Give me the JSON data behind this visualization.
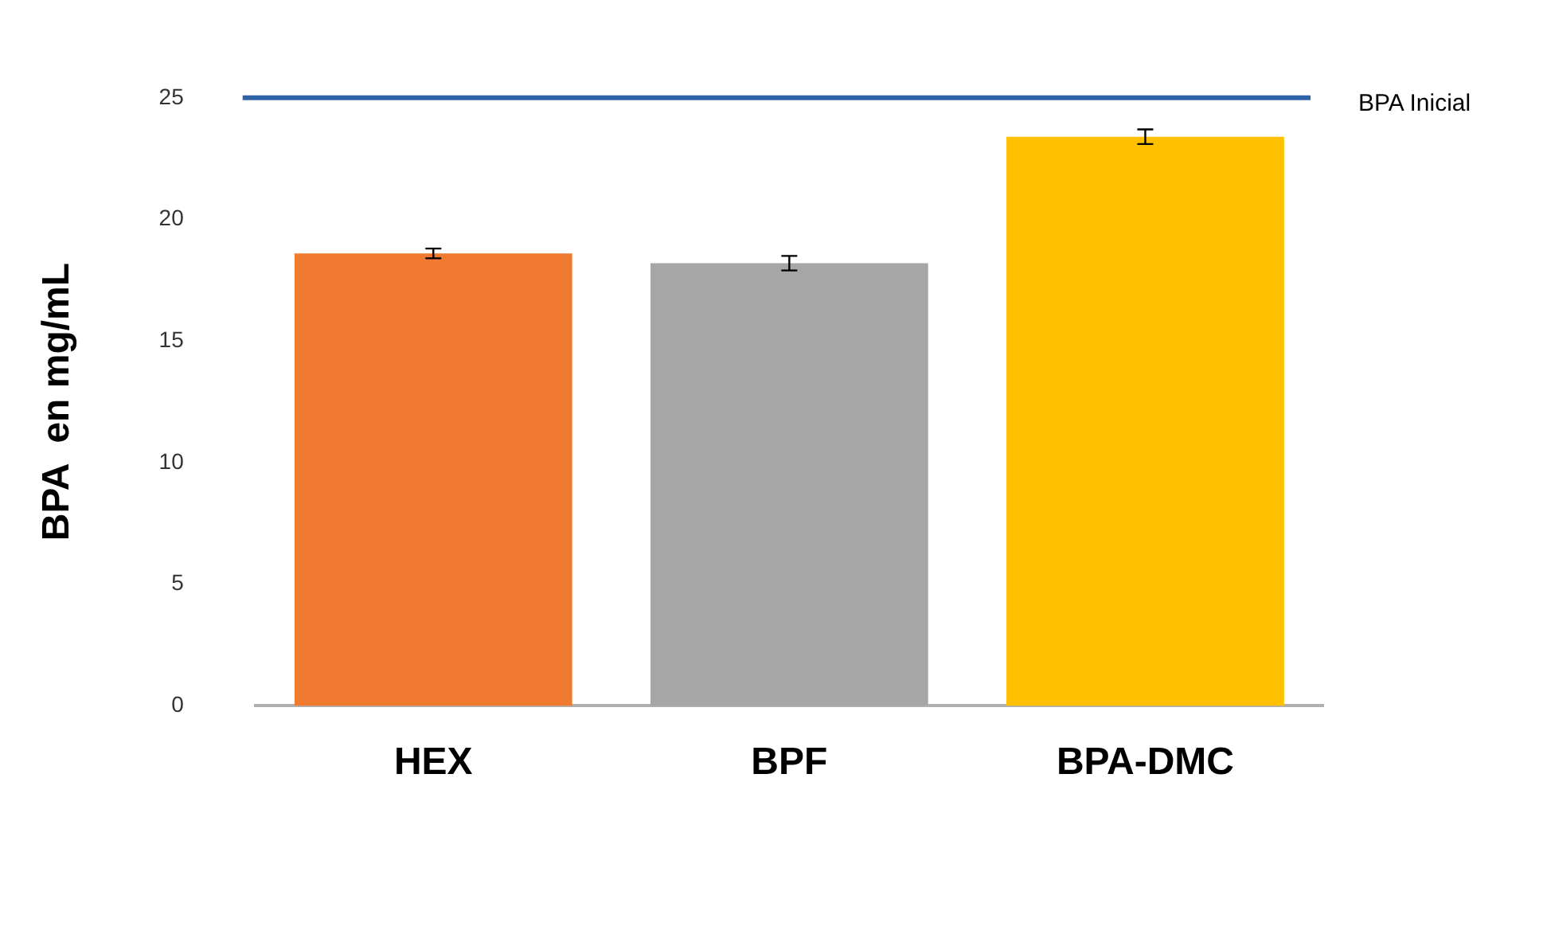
{
  "chart_data": {
    "type": "bar",
    "ylabel": "BPA  en mg/mL",
    "categories": [
      "HEX",
      "BPF",
      "BPA-DMC"
    ],
    "values": [
      18.6,
      18.2,
      23.4
    ],
    "colors": [
      "#f07a30",
      "#a6a6a6",
      "#ffc000"
    ],
    "errors": [
      0.2,
      0.3,
      0.3
    ],
    "ylim": [
      0,
      25
    ],
    "yticks": [
      0,
      5,
      10,
      15,
      20,
      25
    ],
    "grid": false,
    "legend": false,
    "ref_lines": [
      {
        "axis": "y",
        "value": 25,
        "label": "BPA Inicial",
        "color": "#2e62a8"
      }
    ]
  }
}
